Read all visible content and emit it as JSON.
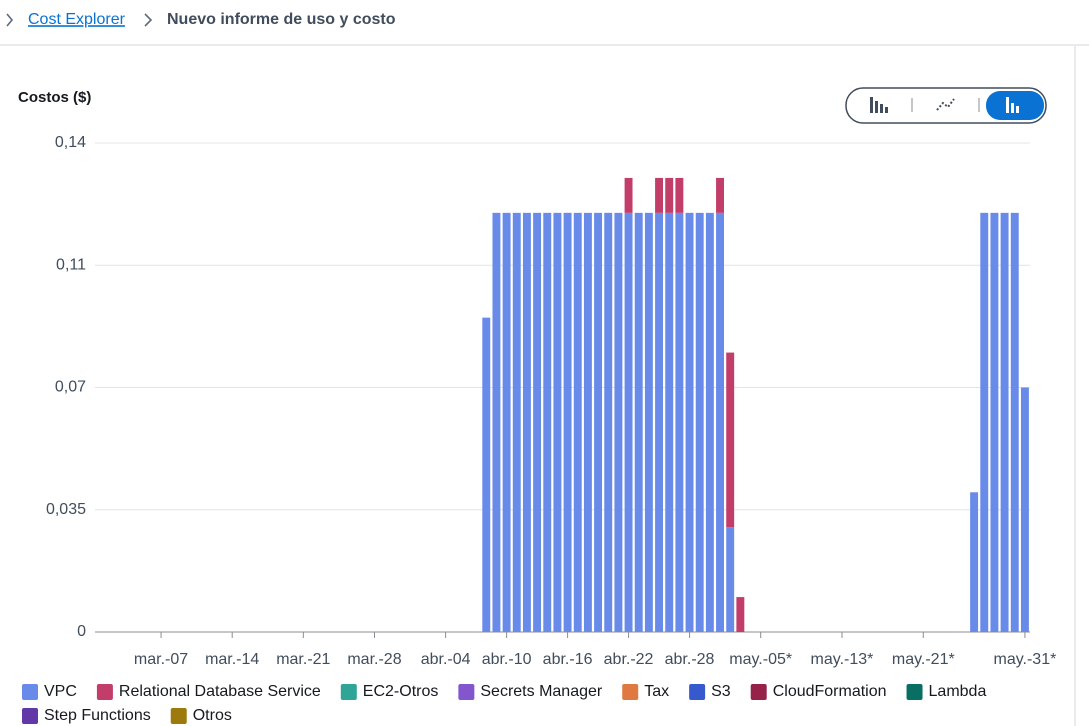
{
  "breadcrumb": [
    "Cost Explorer",
    "Nuevo informe de uso y costo"
  ],
  "chart_data": {
    "type": "stacked_bar",
    "y_label": "Costos ($)",
    "ylim": [
      0,
      0.14
    ],
    "yticks": [
      0,
      {
        "value": 0.035,
        "label": "0,035"
      },
      {
        "value": 0.07,
        "label": "0,07"
      },
      {
        "value": 0.105,
        "label": "0,11"
      },
      {
        "value": 0.14,
        "label": "0,14"
      }
    ],
    "grid": true,
    "categories": [
      null,
      null,
      null,
      null,
      null,
      null,
      "mar.-07",
      null,
      null,
      null,
      null,
      null,
      null,
      "mar.-14",
      null,
      null,
      null,
      null,
      null,
      null,
      "mar.-21",
      null,
      null,
      null,
      null,
      null,
      null,
      "mar.-28",
      null,
      null,
      null,
      null,
      null,
      null,
      "abr.-04",
      null,
      null,
      null,
      null,
      null,
      "abr.-10",
      null,
      null,
      null,
      null,
      null,
      "abr.-16",
      null,
      null,
      null,
      null,
      null,
      "abr.-22",
      null,
      null,
      null,
      null,
      null,
      "abr.-28",
      null,
      null,
      null,
      null,
      null,
      null,
      "may.-05*",
      null,
      null,
      null,
      null,
      null,
      null,
      null,
      "may.-13*",
      null,
      null,
      null,
      null,
      null,
      null,
      null,
      "may.-21*",
      null,
      null,
      null,
      null,
      null,
      null,
      null,
      null,
      null,
      "may.-31*"
    ],
    "series": [
      {
        "name": "VPC",
        "color": "#688ae8",
        "values": [
          0,
          0,
          0,
          0,
          0,
          0,
          0,
          0,
          0,
          0,
          0,
          0,
          0,
          0,
          0,
          0,
          0,
          0,
          0,
          0,
          0,
          0,
          0,
          0,
          0,
          0,
          0,
          0,
          0,
          0,
          0,
          0,
          0,
          0,
          0,
          0,
          0,
          0,
          0.09,
          0.12,
          0.12,
          0.12,
          0.12,
          0.12,
          0.12,
          0.12,
          0.12,
          0.12,
          0.12,
          0.12,
          0.12,
          0.12,
          0.12,
          0.12,
          0.12,
          0.12,
          0.12,
          0.12,
          0.12,
          0.12,
          0.12,
          0.12,
          0.03,
          0,
          0,
          0,
          0,
          0,
          0,
          0,
          0,
          0,
          0,
          0,
          0,
          0,
          0,
          0,
          0,
          0,
          0,
          0,
          0,
          0,
          0,
          0,
          0.04,
          0.12,
          0.12,
          0.12,
          0.12,
          0.07
        ]
      },
      {
        "name": "Relational Database Service",
        "color": "#c33d69",
        "values": [
          0,
          0,
          0,
          0,
          0,
          0,
          0,
          0,
          0,
          0,
          0,
          0,
          0,
          0,
          0,
          0,
          0,
          0,
          0,
          0,
          0,
          0,
          0,
          0,
          0,
          0,
          0,
          0,
          0,
          0,
          0,
          0,
          0,
          0,
          0,
          0,
          0,
          0,
          0,
          0,
          0,
          0,
          0,
          0,
          0,
          0,
          0,
          0,
          0,
          0,
          0,
          0,
          0.01,
          0,
          0,
          0.01,
          0.01,
          0.01,
          0,
          0,
          0,
          0.01,
          0.05,
          0.01,
          0,
          0,
          0,
          0,
          0,
          0,
          0,
          0,
          0,
          0,
          0,
          0,
          0,
          0,
          0,
          0,
          0,
          0,
          0,
          0,
          0,
          0,
          0,
          0,
          0,
          0,
          0,
          0
        ]
      },
      {
        "name": "EC2-Otros",
        "color": "#2ea597",
        "values": [
          0,
          0,
          0,
          0,
          0,
          0,
          0,
          0,
          0,
          0,
          0,
          0,
          0,
          0,
          0,
          0,
          0,
          0,
          0,
          0,
          0,
          0,
          0,
          0,
          0,
          0,
          0,
          0,
          0,
          0,
          0,
          0,
          0,
          0,
          0,
          0,
          0,
          0,
          0,
          0,
          0,
          0,
          0,
          0,
          0,
          0,
          0,
          0,
          0,
          0,
          0,
          0,
          0,
          0,
          0,
          0,
          0,
          0,
          0,
          0,
          0,
          0,
          0,
          0,
          0,
          0,
          0,
          0,
          0,
          0,
          0,
          0,
          0,
          0,
          0,
          0,
          0,
          0,
          0,
          0,
          0,
          0,
          0,
          0,
          0,
          0,
          0,
          0,
          0,
          0,
          0,
          0
        ]
      },
      {
        "name": "Secrets Manager",
        "color": "#8456ce",
        "values": [
          0,
          0,
          0,
          0,
          0,
          0,
          0,
          0,
          0,
          0,
          0,
          0,
          0,
          0,
          0,
          0,
          0,
          0,
          0,
          0,
          0,
          0,
          0,
          0,
          0,
          0,
          0,
          0,
          0,
          0,
          0,
          0,
          0,
          0,
          0,
          0,
          0,
          0,
          0,
          0,
          0,
          0,
          0,
          0,
          0,
          0,
          0,
          0,
          0,
          0,
          0,
          0,
          0,
          0,
          0,
          0,
          0,
          0,
          0,
          0,
          0,
          0,
          0,
          0,
          0,
          0,
          0,
          0,
          0,
          0,
          0,
          0,
          0,
          0,
          0,
          0,
          0,
          0,
          0,
          0,
          0,
          0,
          0,
          0,
          0,
          0,
          0,
          0,
          0,
          0,
          0,
          0
        ]
      },
      {
        "name": "Tax",
        "color": "#e07941",
        "values": [
          0,
          0,
          0,
          0,
          0,
          0,
          0,
          0,
          0,
          0,
          0,
          0,
          0,
          0,
          0,
          0,
          0,
          0,
          0,
          0,
          0,
          0,
          0,
          0,
          0,
          0,
          0,
          0,
          0,
          0,
          0,
          0,
          0,
          0,
          0,
          0,
          0,
          0,
          0,
          0,
          0,
          0,
          0,
          0,
          0,
          0,
          0,
          0,
          0,
          0,
          0,
          0,
          0,
          0,
          0,
          0,
          0,
          0,
          0,
          0,
          0,
          0,
          0,
          0,
          0,
          0,
          0,
          0,
          0,
          0,
          0,
          0,
          0,
          0,
          0,
          0,
          0,
          0,
          0,
          0,
          0,
          0,
          0,
          0,
          0,
          0,
          0,
          0,
          0,
          0,
          0,
          0
        ]
      },
      {
        "name": "S3",
        "color": "#3759ce",
        "values": [
          0,
          0,
          0,
          0,
          0,
          0,
          0,
          0,
          0,
          0,
          0,
          0,
          0,
          0,
          0,
          0,
          0,
          0,
          0,
          0,
          0,
          0,
          0,
          0,
          0,
          0,
          0,
          0,
          0,
          0,
          0,
          0,
          0,
          0,
          0,
          0,
          0,
          0,
          0,
          0,
          0,
          0,
          0,
          0,
          0,
          0,
          0,
          0,
          0,
          0,
          0,
          0,
          0,
          0,
          0,
          0,
          0,
          0,
          0,
          0,
          0,
          0,
          0,
          0,
          0,
          0,
          0,
          0,
          0,
          0,
          0,
          0,
          0,
          0,
          0,
          0,
          0,
          0,
          0,
          0,
          0,
          0,
          0,
          0,
          0,
          0,
          0,
          0,
          0,
          0,
          0,
          0
        ]
      },
      {
        "name": "CloudFormation",
        "color": "#962249",
        "values": [
          0,
          0,
          0,
          0,
          0,
          0,
          0,
          0,
          0,
          0,
          0,
          0,
          0,
          0,
          0,
          0,
          0,
          0,
          0,
          0,
          0,
          0,
          0,
          0,
          0,
          0,
          0,
          0,
          0,
          0,
          0,
          0,
          0,
          0,
          0,
          0,
          0,
          0,
          0,
          0,
          0,
          0,
          0,
          0,
          0,
          0,
          0,
          0,
          0,
          0,
          0,
          0,
          0,
          0,
          0,
          0,
          0,
          0,
          0,
          0,
          0,
          0,
          0,
          0,
          0,
          0,
          0,
          0,
          0,
          0,
          0,
          0,
          0,
          0,
          0,
          0,
          0,
          0,
          0,
          0,
          0,
          0,
          0,
          0,
          0,
          0,
          0,
          0,
          0,
          0,
          0,
          0
        ]
      },
      {
        "name": "Lambda",
        "color": "#096f64",
        "values": [
          0,
          0,
          0,
          0,
          0,
          0,
          0,
          0,
          0,
          0,
          0,
          0,
          0,
          0,
          0,
          0,
          0,
          0,
          0,
          0,
          0,
          0,
          0,
          0,
          0,
          0,
          0,
          0,
          0,
          0,
          0,
          0,
          0,
          0,
          0,
          0,
          0,
          0,
          0,
          0,
          0,
          0,
          0,
          0,
          0,
          0,
          0,
          0,
          0,
          0,
          0,
          0,
          0,
          0,
          0,
          0,
          0,
          0,
          0,
          0,
          0,
          0,
          0,
          0,
          0,
          0,
          0,
          0,
          0,
          0,
          0,
          0,
          0,
          0,
          0,
          0,
          0,
          0,
          0,
          0,
          0,
          0,
          0,
          0,
          0,
          0,
          0,
          0,
          0,
          0,
          0,
          0
        ]
      },
      {
        "name": "Step Functions",
        "color": "#6237a7",
        "values": [
          0,
          0,
          0,
          0,
          0,
          0,
          0,
          0,
          0,
          0,
          0,
          0,
          0,
          0,
          0,
          0,
          0,
          0,
          0,
          0,
          0,
          0,
          0,
          0,
          0,
          0,
          0,
          0,
          0,
          0,
          0,
          0,
          0,
          0,
          0,
          0,
          0,
          0,
          0,
          0,
          0,
          0,
          0,
          0,
          0,
          0,
          0,
          0,
          0,
          0,
          0,
          0,
          0,
          0,
          0,
          0,
          0,
          0,
          0,
          0,
          0,
          0,
          0,
          0,
          0,
          0,
          0,
          0,
          0,
          0,
          0,
          0,
          0,
          0,
          0,
          0,
          0,
          0,
          0,
          0,
          0,
          0,
          0,
          0,
          0,
          0,
          0,
          0,
          0,
          0,
          0,
          0
        ]
      },
      {
        "name": "Otros",
        "color": "#9c7b0c",
        "values": [
          0,
          0,
          0,
          0,
          0,
          0,
          0,
          0,
          0,
          0,
          0,
          0,
          0,
          0,
          0,
          0,
          0,
          0,
          0,
          0,
          0,
          0,
          0,
          0,
          0,
          0,
          0,
          0,
          0,
          0,
          0,
          0,
          0,
          0,
          0,
          0,
          0,
          0,
          0,
          0,
          0,
          0,
          0,
          0,
          0,
          0,
          0,
          0,
          0,
          0,
          0,
          0,
          0,
          0,
          0,
          0,
          0,
          0,
          0,
          0,
          0,
          0,
          0,
          0,
          0,
          0,
          0,
          0,
          0,
          0,
          0,
          0,
          0,
          0,
          0,
          0,
          0,
          0,
          0,
          0,
          0,
          0,
          0,
          0,
          0,
          0,
          0,
          0,
          0,
          0,
          0,
          0
        ]
      }
    ]
  }
}
